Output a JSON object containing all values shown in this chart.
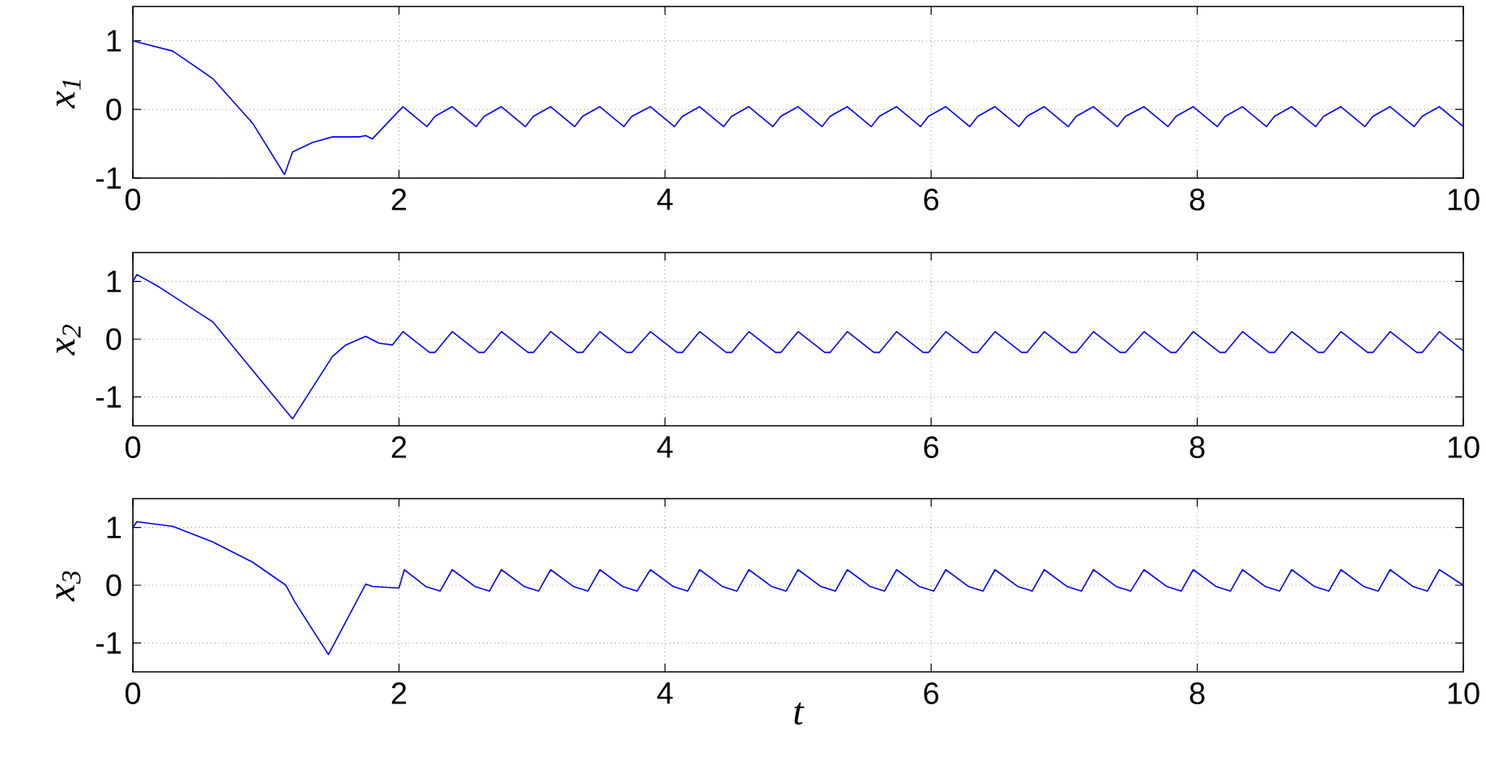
{
  "chart_data": [
    {
      "type": "line",
      "ylabel": "x$_{1}$",
      "xlim": [
        0,
        10
      ],
      "ylim": [
        -1,
        1.5
      ],
      "xticks": [
        0,
        2,
        4,
        6,
        8,
        10
      ],
      "yticks": [
        -1,
        0,
        1
      ],
      "grid": true,
      "series": [
        {
          "color": "#0000ff",
          "x": [
            0,
            0.3,
            0.6,
            0.9,
            1.14,
            1.2,
            1.35,
            1.5,
            1.7,
            1.75,
            1.8,
            2.0,
            2.03,
            2.21,
            2.27,
            2.4,
            2.58,
            2.64,
            2.77,
            2.95,
            3.01,
            3.14,
            3.32,
            3.38,
            3.51,
            3.69,
            3.75,
            3.89,
            4.07,
            4.13,
            4.26,
            4.44,
            4.5,
            4.63,
            4.81,
            4.87,
            5.0,
            5.18,
            5.24,
            5.37,
            5.55,
            5.61,
            5.74,
            5.92,
            5.98,
            6.11,
            6.29,
            6.35,
            6.48,
            6.66,
            6.72,
            6.85,
            7.03,
            7.09,
            7.22,
            7.4,
            7.46,
            7.6,
            7.78,
            7.84,
            7.97,
            8.15,
            8.21,
            8.34,
            8.52,
            8.58,
            8.71,
            8.89,
            8.95,
            9.08,
            9.26,
            9.32,
            9.45,
            9.63,
            9.69,
            9.82,
            10.0
          ],
          "values": [
            1,
            0.85,
            0.45,
            -0.2,
            -0.95,
            -0.62,
            -0.48,
            -0.4,
            -0.4,
            -0.38,
            -0.43,
            -0.02,
            0.04,
            -0.25,
            -0.1,
            0.04,
            -0.25,
            -0.1,
            0.04,
            -0.25,
            -0.1,
            0.04,
            -0.25,
            -0.1,
            0.04,
            -0.25,
            -0.1,
            0.04,
            -0.25,
            -0.1,
            0.04,
            -0.25,
            -0.1,
            0.04,
            -0.25,
            -0.1,
            0.04,
            -0.25,
            -0.1,
            0.04,
            -0.25,
            -0.1,
            0.04,
            -0.25,
            -0.1,
            0.04,
            -0.25,
            -0.1,
            0.04,
            -0.25,
            -0.1,
            0.04,
            -0.25,
            -0.1,
            0.04,
            -0.25,
            -0.1,
            0.04,
            -0.25,
            -0.1,
            0.04,
            -0.25,
            -0.1,
            0.04,
            -0.25,
            -0.1,
            0.04,
            -0.25,
            -0.1,
            0.04,
            -0.25,
            -0.1,
            0.04,
            -0.25,
            -0.1,
            0.04,
            -0.25
          ]
        }
      ]
    },
    {
      "type": "line",
      "ylabel": "x$_{2}$",
      "xlim": [
        0,
        10
      ],
      "ylim": [
        -1.5,
        1.5
      ],
      "xticks": [
        0,
        2,
        4,
        6,
        8,
        10
      ],
      "yticks": [
        -1,
        0,
        1
      ],
      "grid": true,
      "series": [
        {
          "color": "#0000ff",
          "x": [
            0,
            0.03,
            0.2,
            0.6,
            1.2,
            1.5,
            1.6,
            1.75,
            1.85,
            1.95,
            2.03,
            2.23,
            2.27,
            2.4,
            2.6,
            2.64,
            2.77,
            2.97,
            3.01,
            3.14,
            3.34,
            3.38,
            3.51,
            3.71,
            3.75,
            3.89,
            4.09,
            4.13,
            4.26,
            4.46,
            4.5,
            4.63,
            4.83,
            4.87,
            5.0,
            5.2,
            5.24,
            5.37,
            5.57,
            5.61,
            5.74,
            5.94,
            5.98,
            6.11,
            6.31,
            6.35,
            6.48,
            6.68,
            6.72,
            6.85,
            7.05,
            7.09,
            7.22,
            7.42,
            7.46,
            7.6,
            7.8,
            7.84,
            7.97,
            8.17,
            8.21,
            8.34,
            8.54,
            8.58,
            8.71,
            8.91,
            8.95,
            9.08,
            9.28,
            9.32,
            9.45,
            9.65,
            9.69,
            9.82,
            10.0
          ],
          "values": [
            1,
            1.12,
            0.9,
            0.3,
            -1.38,
            -0.3,
            -0.1,
            0.05,
            -0.07,
            -0.1,
            0.13,
            -0.23,
            -0.23,
            0.13,
            -0.23,
            -0.23,
            0.13,
            -0.23,
            -0.23,
            0.13,
            -0.23,
            -0.23,
            0.13,
            -0.23,
            -0.23,
            0.13,
            -0.23,
            -0.23,
            0.13,
            -0.23,
            -0.23,
            0.13,
            -0.23,
            -0.23,
            0.13,
            -0.23,
            -0.23,
            0.13,
            -0.23,
            -0.23,
            0.13,
            -0.23,
            -0.23,
            0.13,
            -0.23,
            -0.23,
            0.13,
            -0.23,
            -0.23,
            0.13,
            -0.23,
            -0.23,
            0.13,
            -0.23,
            -0.23,
            0.13,
            -0.23,
            -0.23,
            0.13,
            -0.23,
            -0.23,
            0.13,
            -0.23,
            -0.23,
            0.13,
            -0.23,
            -0.23,
            0.13,
            -0.23,
            -0.23,
            0.13,
            -0.23,
            -0.23,
            0.13,
            -0.2
          ]
        }
      ]
    },
    {
      "type": "line",
      "ylabel": "x$_{3}$",
      "xlabel": "t",
      "xlim": [
        0,
        10
      ],
      "ylim": [
        -1.5,
        1.5
      ],
      "xticks": [
        0,
        2,
        4,
        6,
        8,
        10
      ],
      "yticks": [
        -1,
        0,
        1
      ],
      "grid": true,
      "series": [
        {
          "color": "#0000ff",
          "x": [
            0,
            0.03,
            0.3,
            0.6,
            0.9,
            1.15,
            1.22,
            1.47,
            1.75,
            1.8,
            2.0,
            2.04,
            2.2,
            2.31,
            2.4,
            2.57,
            2.68,
            2.77,
            2.94,
            3.05,
            3.14,
            3.31,
            3.42,
            3.51,
            3.68,
            3.79,
            3.89,
            4.06,
            4.17,
            4.26,
            4.43,
            4.54,
            4.63,
            4.8,
            4.91,
            5.0,
            5.17,
            5.28,
            5.37,
            5.54,
            5.65,
            5.74,
            5.91,
            6.02,
            6.11,
            6.28,
            6.39,
            6.48,
            6.65,
            6.76,
            6.85,
            7.02,
            7.13,
            7.22,
            7.39,
            7.5,
            7.6,
            7.77,
            7.88,
            7.97,
            8.14,
            8.25,
            8.34,
            8.51,
            8.62,
            8.71,
            8.88,
            8.99,
            9.08,
            9.25,
            9.36,
            9.45,
            9.62,
            9.73,
            9.82,
            10.0
          ],
          "values": [
            1.0,
            1.1,
            1.02,
            0.75,
            0.4,
            0.0,
            -0.3,
            -1.2,
            0.02,
            -0.02,
            -0.05,
            0.27,
            -0.02,
            -0.1,
            0.27,
            -0.02,
            -0.1,
            0.27,
            -0.02,
            -0.1,
            0.27,
            -0.02,
            -0.1,
            0.27,
            -0.02,
            -0.1,
            0.27,
            -0.02,
            -0.1,
            0.27,
            -0.02,
            -0.1,
            0.27,
            -0.02,
            -0.1,
            0.27,
            -0.02,
            -0.1,
            0.27,
            -0.02,
            -0.1,
            0.27,
            -0.02,
            -0.1,
            0.27,
            -0.02,
            -0.1,
            0.27,
            -0.02,
            -0.1,
            0.27,
            -0.02,
            -0.1,
            0.27,
            -0.02,
            -0.1,
            0.27,
            -0.02,
            -0.1,
            0.27,
            -0.02,
            -0.1,
            0.27,
            -0.02,
            -0.1,
            0.27,
            -0.02,
            -0.1,
            0.27,
            -0.02,
            -0.1,
            0.27,
            -0.02,
            -0.1,
            0.27,
            0.0
          ]
        }
      ]
    }
  ]
}
